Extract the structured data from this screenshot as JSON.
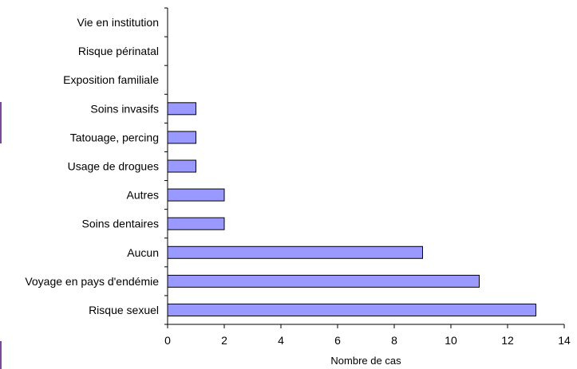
{
  "chart_data": {
    "type": "bar",
    "orientation": "horizontal",
    "title": "",
    "xlabel": "Nombre de cas",
    "ylabel": "",
    "categories": [
      "Vie en institution",
      "Risque périnatal",
      "Exposition familiale",
      "Soins invasifs",
      "Tatouage, percing",
      "Usage de drogues",
      "Autres",
      "Soins dentaires",
      "Aucun",
      "Voyage en pays d'endémie",
      "Risque sexuel"
    ],
    "values": [
      0,
      0,
      0,
      1,
      1,
      1,
      2,
      2,
      9,
      11,
      13
    ],
    "xlim": [
      0,
      14
    ],
    "xticks": [
      "0",
      "2",
      "4",
      "6",
      "8",
      "10",
      "12",
      "14"
    ],
    "grid": false,
    "legend": "none",
    "colors": {
      "bar_fill": "#9999ff",
      "bar_stroke": "#000000",
      "axis": "#000000"
    }
  }
}
